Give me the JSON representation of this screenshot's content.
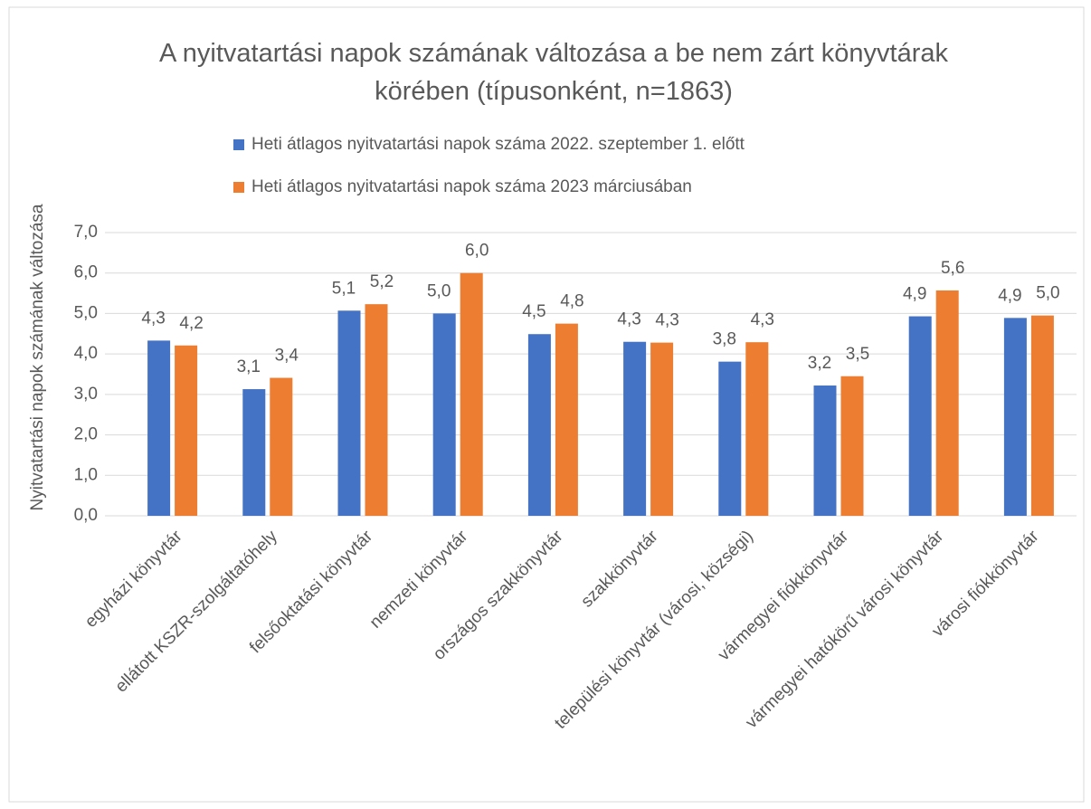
{
  "chart_data": {
    "type": "bar",
    "title": "A nyitvatartási napok számának változása a be nem zárt könyvtárak körében (típusonként, n=1863)",
    "ylabel": "Nyitvatartási napok számának változása",
    "categories": [
      "egyházi könyvtár",
      "ellátott KSZR-szolgáltatóhely",
      "felsőoktatási könyvtár",
      "nemzeti könyvtár",
      "országos szakkönyvtár",
      "szakkönyvtár",
      "települési könyvtár (városi, községi)",
      "vármegyei fiókkönyvtár",
      "vármegyei hatókörű városi könyvtár",
      "városi fiókkönyvtár"
    ],
    "series": [
      {
        "name": "Heti átlagos nyitvatartási napok száma 2022. szeptember 1. előtt",
        "color": "#4472c4",
        "values": [
          4.33,
          3.13,
          5.07,
          5.0,
          4.49,
          4.3,
          3.81,
          3.22,
          4.93,
          4.89
        ],
        "value_labels": [
          "4,3",
          "3,1",
          "5,1",
          "5,0",
          "4,5",
          "4,3",
          "3,8",
          "3,2",
          "4,9",
          "4,9"
        ]
      },
      {
        "name": "Heti átlagos nyitvatartási napok száma 2023 márciusában",
        "color": "#ed7d31",
        "values": [
          4.21,
          3.41,
          5.23,
          6.0,
          4.75,
          4.28,
          4.29,
          3.45,
          5.57,
          4.95
        ],
        "value_labels": [
          "4,2",
          "3,4",
          "5,2",
          "6,0",
          "4,8",
          "4,3",
          "4,3",
          "3,5",
          "5,6",
          "5,0"
        ]
      }
    ],
    "ylim": [
      0,
      7
    ],
    "yticks": [
      {
        "value": 0,
        "label": "0,0"
      },
      {
        "value": 1,
        "label": "1,0"
      },
      {
        "value": 2,
        "label": "2,0"
      },
      {
        "value": 3,
        "label": "3,0"
      },
      {
        "value": 4,
        "label": "4,0"
      },
      {
        "value": 5,
        "label": "5,0"
      },
      {
        "value": 6,
        "label": "6,0"
      },
      {
        "value": 7,
        "label": "7,0"
      }
    ],
    "grid": true,
    "legend": "top"
  }
}
